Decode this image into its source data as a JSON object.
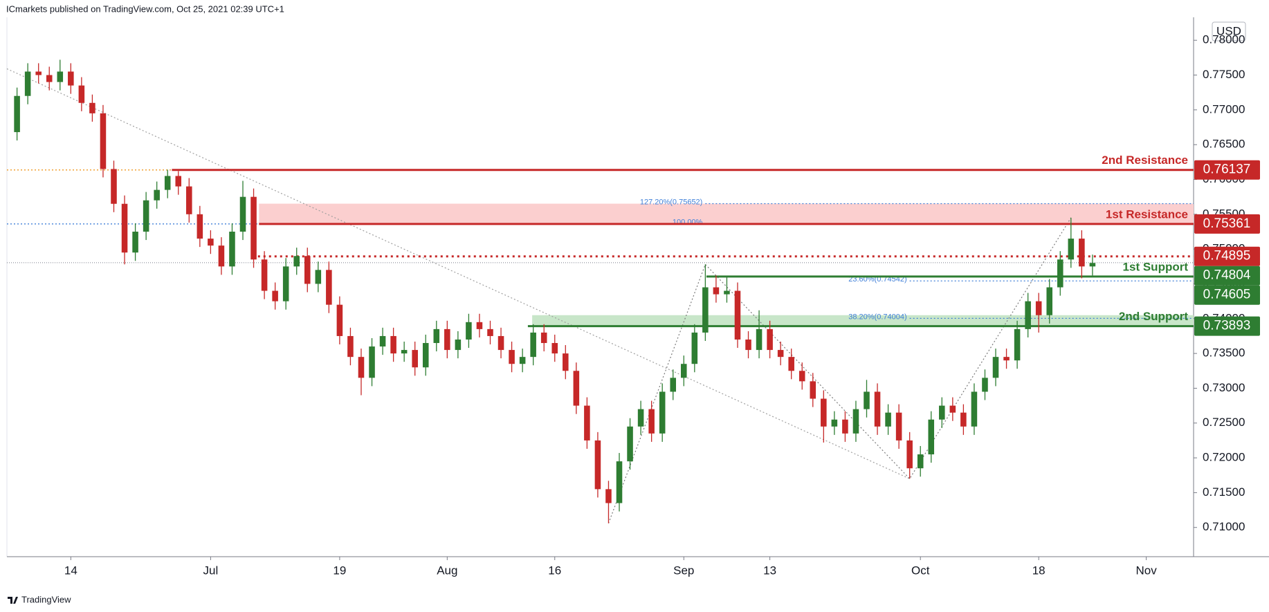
{
  "chart_data": {
    "type": "candlestick",
    "title": "ICmarkets published on TradingView.com, Oct 25, 2021 02:39 UTC+1",
    "currency": "USD",
    "footer": "TradingView",
    "up_color": "#2e7d32",
    "down_color": "#c62828",
    "xlim": [
      -0.94,
      109.4
    ],
    "xticks": [
      {
        "value": 5,
        "label": "14"
      },
      {
        "value": 18,
        "label": "Jul"
      },
      {
        "value": 30,
        "label": "19"
      },
      {
        "value": 40,
        "label": "Aug"
      },
      {
        "value": 50,
        "label": "16"
      },
      {
        "value": 62,
        "label": "Sep"
      },
      {
        "value": 70,
        "label": "13"
      },
      {
        "value": 84,
        "label": "Oct"
      },
      {
        "value": 95,
        "label": "18"
      },
      {
        "value": 105,
        "label": "Nov"
      }
    ],
    "ylim": [
      0.7058,
      0.7833
    ],
    "yticks": [
      {
        "value": 0.71,
        "label": "0.71000"
      },
      {
        "value": 0.715,
        "label": "0.71500"
      },
      {
        "value": 0.72,
        "label": "0.72000"
      },
      {
        "value": 0.725,
        "label": "0.72500"
      },
      {
        "value": 0.73,
        "label": "0.73000"
      },
      {
        "value": 0.735,
        "label": "0.73500"
      },
      {
        "value": 0.74,
        "label": "0.74000"
      },
      {
        "value": 0.745,
        "label": "0.74500"
      },
      {
        "value": 0.75,
        "label": "0.75000"
      },
      {
        "value": 0.755,
        "label": "0.75500"
      },
      {
        "value": 0.76,
        "label": "0.76000"
      },
      {
        "value": 0.765,
        "label": "0.76500"
      },
      {
        "value": 0.77,
        "label": "0.77000"
      },
      {
        "value": 0.775,
        "label": "0.77500"
      },
      {
        "value": 0.78,
        "label": "0.78000"
      }
    ],
    "ohlc": [
      [
        0.7668,
        0.7732,
        0.7656,
        0.772
      ],
      [
        0.772,
        0.7767,
        0.7708,
        0.7755
      ],
      [
        0.7755,
        0.7767,
        0.7738,
        0.775
      ],
      [
        0.775,
        0.7762,
        0.7728,
        0.774
      ],
      [
        0.774,
        0.7772,
        0.7728,
        0.7755
      ],
      [
        0.7755,
        0.7767,
        0.7723,
        0.7735
      ],
      [
        0.7735,
        0.7747,
        0.7698,
        0.771
      ],
      [
        0.771,
        0.7722,
        0.7683,
        0.7695
      ],
      [
        0.7695,
        0.7707,
        0.7603,
        0.7615
      ],
      [
        0.7615,
        0.7627,
        0.7553,
        0.7565
      ],
      [
        0.7565,
        0.7577,
        0.7478,
        0.7495
      ],
      [
        0.7495,
        0.7537,
        0.7483,
        0.7525
      ],
      [
        0.7525,
        0.7582,
        0.7513,
        0.757
      ],
      [
        0.757,
        0.7597,
        0.7558,
        0.7585
      ],
      [
        0.7585,
        0.7614,
        0.7573,
        0.7605
      ],
      [
        0.7605,
        0.7612,
        0.7578,
        0.759
      ],
      [
        0.759,
        0.7602,
        0.7538,
        0.755
      ],
      [
        0.755,
        0.7562,
        0.7503,
        0.7515
      ],
      [
        0.7515,
        0.7527,
        0.7493,
        0.7505
      ],
      [
        0.7505,
        0.7517,
        0.7463,
        0.7475
      ],
      [
        0.7475,
        0.7537,
        0.7463,
        0.7525
      ],
      [
        0.7525,
        0.7598,
        0.7513,
        0.7575
      ],
      [
        0.7575,
        0.7587,
        0.7473,
        0.7485
      ],
      [
        0.7485,
        0.7497,
        0.7428,
        0.744
      ],
      [
        0.744,
        0.7452,
        0.7413,
        0.7425
      ],
      [
        0.7425,
        0.7487,
        0.7413,
        0.7475
      ],
      [
        0.7475,
        0.7502,
        0.7463,
        0.749
      ],
      [
        0.749,
        0.7502,
        0.7438,
        0.745
      ],
      [
        0.745,
        0.7482,
        0.7438,
        0.747
      ],
      [
        0.747,
        0.7482,
        0.7408,
        0.742
      ],
      [
        0.742,
        0.7432,
        0.7363,
        0.7375
      ],
      [
        0.7375,
        0.7387,
        0.7333,
        0.7345
      ],
      [
        0.7345,
        0.7357,
        0.729,
        0.7315
      ],
      [
        0.7315,
        0.7372,
        0.7303,
        0.736
      ],
      [
        0.736,
        0.7387,
        0.7348,
        0.7375
      ],
      [
        0.7375,
        0.7387,
        0.7338,
        0.735
      ],
      [
        0.735,
        0.7367,
        0.7338,
        0.7355
      ],
      [
        0.7355,
        0.7367,
        0.7318,
        0.733
      ],
      [
        0.733,
        0.7377,
        0.7318,
        0.7365
      ],
      [
        0.7365,
        0.7397,
        0.7353,
        0.7385
      ],
      [
        0.7385,
        0.7397,
        0.7343,
        0.7355
      ],
      [
        0.7355,
        0.7382,
        0.7343,
        0.737
      ],
      [
        0.737,
        0.7407,
        0.7358,
        0.7395
      ],
      [
        0.7395,
        0.7407,
        0.7373,
        0.7385
      ],
      [
        0.7385,
        0.7397,
        0.7363,
        0.7375
      ],
      [
        0.7375,
        0.7387,
        0.7343,
        0.7355
      ],
      [
        0.7355,
        0.7367,
        0.7323,
        0.7335
      ],
      [
        0.7335,
        0.7357,
        0.7323,
        0.7345
      ],
      [
        0.7345,
        0.7392,
        0.7333,
        0.738
      ],
      [
        0.738,
        0.7392,
        0.7353,
        0.7365
      ],
      [
        0.7365,
        0.7377,
        0.7338,
        0.735
      ],
      [
        0.735,
        0.7362,
        0.7313,
        0.7325
      ],
      [
        0.7325,
        0.7337,
        0.7263,
        0.7275
      ],
      [
        0.7275,
        0.7287,
        0.7213,
        0.7225
      ],
      [
        0.7225,
        0.7237,
        0.7143,
        0.7155
      ],
      [
        0.7155,
        0.7167,
        0.7106,
        0.7135
      ],
      [
        0.7135,
        0.7207,
        0.7123,
        0.7195
      ],
      [
        0.7195,
        0.7257,
        0.7183,
        0.7245
      ],
      [
        0.7245,
        0.7282,
        0.7233,
        0.727
      ],
      [
        0.727,
        0.7282,
        0.7223,
        0.7235
      ],
      [
        0.7235,
        0.7307,
        0.7223,
        0.7295
      ],
      [
        0.7295,
        0.7327,
        0.7283,
        0.7315
      ],
      [
        0.7315,
        0.7347,
        0.7303,
        0.7335
      ],
      [
        0.7335,
        0.7392,
        0.7323,
        0.738
      ],
      [
        0.738,
        0.7478,
        0.7368,
        0.7445
      ],
      [
        0.7445,
        0.7462,
        0.7423,
        0.7435
      ],
      [
        0.7435,
        0.746,
        0.7423,
        0.744
      ],
      [
        0.744,
        0.7452,
        0.7358,
        0.737
      ],
      [
        0.737,
        0.7382,
        0.7343,
        0.7355
      ],
      [
        0.7355,
        0.7412,
        0.7343,
        0.7385
      ],
      [
        0.7385,
        0.7397,
        0.7343,
        0.7355
      ],
      [
        0.7355,
        0.7367,
        0.7333,
        0.7345
      ],
      [
        0.7345,
        0.7357,
        0.7313,
        0.7325
      ],
      [
        0.7325,
        0.7337,
        0.7298,
        0.731
      ],
      [
        0.731,
        0.7322,
        0.7273,
        0.7285
      ],
      [
        0.7285,
        0.7297,
        0.7222,
        0.7245
      ],
      [
        0.7245,
        0.7267,
        0.7233,
        0.7255
      ],
      [
        0.7255,
        0.7267,
        0.7223,
        0.7235
      ],
      [
        0.7235,
        0.7282,
        0.7223,
        0.727
      ],
      [
        0.727,
        0.7312,
        0.7258,
        0.7295
      ],
      [
        0.7295,
        0.7307,
        0.7233,
        0.7245
      ],
      [
        0.7245,
        0.7277,
        0.7233,
        0.7265
      ],
      [
        0.7265,
        0.7277,
        0.7213,
        0.7225
      ],
      [
        0.7225,
        0.7237,
        0.717,
        0.7185
      ],
      [
        0.7185,
        0.7217,
        0.7173,
        0.7205
      ],
      [
        0.7205,
        0.7267,
        0.7193,
        0.7255
      ],
      [
        0.7255,
        0.7287,
        0.7243,
        0.7275
      ],
      [
        0.7275,
        0.7287,
        0.7253,
        0.7265
      ],
      [
        0.7265,
        0.7277,
        0.7233,
        0.7245
      ],
      [
        0.7245,
        0.7307,
        0.7233,
        0.7295
      ],
      [
        0.7295,
        0.7327,
        0.7283,
        0.7315
      ],
      [
        0.7315,
        0.7357,
        0.7303,
        0.7345
      ],
      [
        0.7345,
        0.7357,
        0.7328,
        0.734
      ],
      [
        0.734,
        0.7397,
        0.7328,
        0.7385
      ],
      [
        0.7385,
        0.7437,
        0.7373,
        0.7425
      ],
      [
        0.7425,
        0.7437,
        0.738,
        0.7405
      ],
      [
        0.7405,
        0.7457,
        0.7393,
        0.7445
      ],
      [
        0.7445,
        0.7497,
        0.7433,
        0.7485
      ],
      [
        0.7485,
        0.7545,
        0.7473,
        0.7515
      ],
      [
        0.7515,
        0.7527,
        0.7458,
        0.7475
      ],
      [
        0.7475,
        0.7492,
        0.7462,
        0.748
      ]
    ],
    "zones": [
      {
        "low": 0.75361,
        "high": 0.75652,
        "from": 22.5,
        "color": "#fbcfcf"
      },
      {
        "low": 0.73893,
        "high": 0.7405,
        "from": 47.9,
        "color": "#c8e6c9"
      }
    ],
    "trendlines": [
      {
        "points": [
          [
            -0.94,
            0.7759
          ],
          [
            83,
            0.717
          ]
        ],
        "color": "#9e9e9e"
      },
      {
        "points": [
          [
            55,
            0.7106
          ],
          [
            64,
            0.7478
          ],
          [
            83,
            0.717
          ],
          [
            98,
            0.7545
          ]
        ],
        "color": "#7a7a7a"
      }
    ],
    "fib_color": "#3f7fd8",
    "fib_levels": [
      {
        "label": "127.20%(0.75652)",
        "value": 0.75652,
        "from": 64,
        "label_at": 64
      },
      {
        "label": "100.00%",
        "value": 0.75361,
        "from": -0.94,
        "label_at": 64
      },
      {
        "label": "23.60%(0.74542)",
        "value": 0.74542,
        "from": 83,
        "label_at": 83
      },
      {
        "label": "38.20%(0.74004)",
        "value": 0.74004,
        "from": 83,
        "label_at": 83
      }
    ],
    "last_price": {
      "value": 0.74804,
      "color": "#2e7d32"
    },
    "levels": [
      {
        "name": "2nd Resistance",
        "value": 0.76137,
        "color": "#c62828",
        "style": "solid",
        "from": 14.4,
        "lead_color": "#f0a030"
      },
      {
        "name": "1st Resistance",
        "value": 0.75361,
        "color": "#c62828",
        "style": "solid",
        "from": 22.5
      },
      {
        "value": 0.74895,
        "color": "#c62828",
        "style": "dotted",
        "from": 22.4
      },
      {
        "name": "1st Support",
        "value": 0.74605,
        "color": "#2e7d32",
        "style": "solid",
        "from": 64.1
      },
      {
        "name": "2nd Support",
        "value": 0.73893,
        "color": "#2e7d32",
        "style": "solid",
        "from": 47.5
      }
    ]
  }
}
